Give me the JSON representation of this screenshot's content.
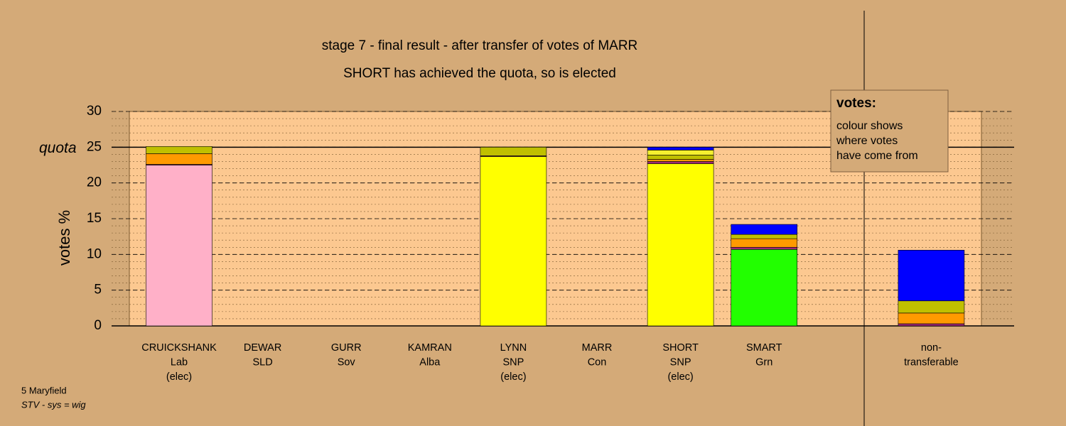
{
  "chart_data": {
    "type": "stacked_bar",
    "title": "stage 7 - final result - after transfer of votes of MARR",
    "subtitle": "SHORT has achieved the quota, so is elected",
    "ylabel": "votes %",
    "categories": [
      [
        "CRUICKSHANK",
        "Lab",
        "(elec)"
      ],
      [
        "DEWAR",
        "SLD"
      ],
      [
        "GURR",
        "Sov"
      ],
      [
        "KAMRAN",
        "Alba"
      ],
      [
        "LYNN",
        "SNP",
        "(elec)"
      ],
      [
        "MARR",
        "Con"
      ],
      [
        "SHORT",
        "SNP",
        "(elec)"
      ],
      [
        "SMART",
        "Grn"
      ],
      [
        "non-",
        "transferable"
      ]
    ],
    "series": [
      {
        "color": "#ffb0c8",
        "values": [
          22.5,
          0,
          0,
          0,
          0,
          0,
          0,
          0,
          0
        ]
      },
      {
        "color": "#ffff00",
        "values": [
          0,
          0,
          0,
          0,
          23.7,
          0,
          22.7,
          0,
          0
        ]
      },
      {
        "color": "#22ff00",
        "values": [
          0,
          0,
          0,
          0,
          0,
          0,
          0,
          10.7,
          0
        ]
      },
      {
        "color": "#a02878",
        "values": [
          0.1,
          0,
          0,
          0,
          0.1,
          0,
          0.3,
          0.3,
          0.3
        ]
      },
      {
        "color": "#ff9a00",
        "values": [
          1.5,
          0,
          0,
          0,
          0,
          0,
          0.3,
          1.2,
          1.5
        ]
      },
      {
        "color": "#c0c000",
        "values": [
          1.0,
          0,
          0,
          0,
          1.2,
          0,
          0.6,
          0.6,
          1.7
        ]
      },
      {
        "color": "#f4f030",
        "values": [
          0,
          0,
          0,
          0,
          0,
          0,
          0.7,
          0,
          0
        ]
      },
      {
        "color": "#0000ff",
        "values": [
          0,
          0,
          0,
          0,
          0,
          0,
          0.4,
          1.4,
          7.1
        ]
      }
    ],
    "ylim": [
      0,
      30
    ],
    "yticks": [
      0,
      5,
      10,
      15,
      20,
      25,
      30
    ],
    "yminor_step": 1,
    "grid": true,
    "quota": {
      "value": 25,
      "label": "quota"
    },
    "legend_box": {
      "title": "votes:",
      "lines": [
        "colour shows",
        "where votes",
        "have come from"
      ]
    },
    "footer": [
      "5 Maryfield",
      "STV - sys = wig"
    ]
  }
}
